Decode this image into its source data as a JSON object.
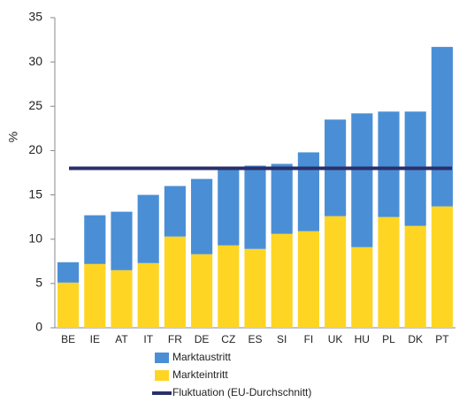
{
  "chart_data": {
    "type": "stacked_bar",
    "y_label": "%",
    "categories": [
      "BE",
      "IE",
      "AT",
      "IT",
      "FR",
      "DE",
      "CZ",
      "ES",
      "SI",
      "FI",
      "UK",
      "HU",
      "PL",
      "DK",
      "PT"
    ],
    "series": [
      {
        "name": "Markteintritt",
        "color": "#ffd523",
        "values": [
          5.1,
          7.2,
          6.5,
          7.3,
          10.3,
          8.3,
          9.3,
          8.9,
          10.6,
          10.9,
          12.6,
          9.1,
          12.5,
          11.5,
          13.7
        ]
      },
      {
        "name": "Marktaustritt",
        "color": "#4a8fd6",
        "values": [
          2.3,
          5.5,
          6.6,
          7.7,
          5.7,
          8.5,
          8.7,
          9.4,
          7.9,
          8.9,
          10.9,
          15.1,
          11.9,
          12.9,
          18.0
        ]
      }
    ],
    "reference": {
      "name": "Fluktuation (EU-Durchschnitt)",
      "color": "#2a2f6b",
      "value": 18
    },
    "ylim": [
      0,
      35
    ],
    "yticks": [
      0,
      5,
      10,
      15,
      20,
      25,
      30,
      35
    ],
    "grid": false
  }
}
